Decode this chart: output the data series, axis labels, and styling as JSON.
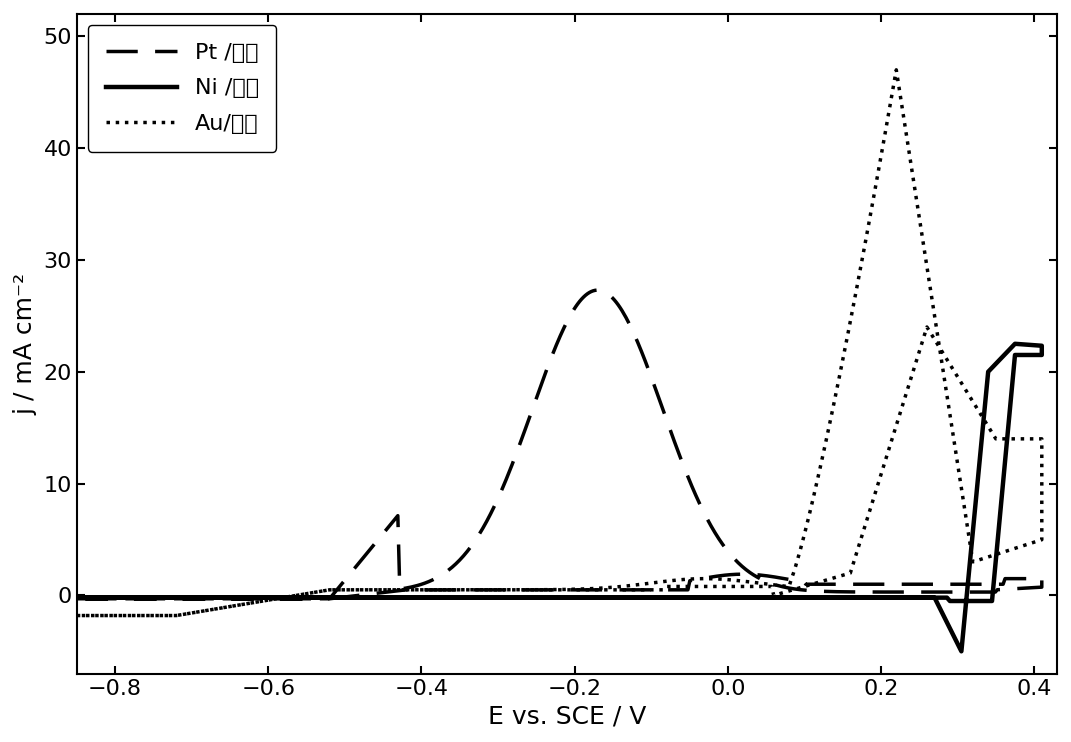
{
  "title": "",
  "xlabel": "E vs. SCE / V",
  "ylabel": "j / mA cm⁻²",
  "xlim": [
    -0.85,
    0.43
  ],
  "ylim": [
    -7,
    52
  ],
  "xticks": [
    -0.8,
    -0.6,
    -0.4,
    -0.2,
    0.0,
    0.2,
    0.4
  ],
  "yticks": [
    0,
    10,
    20,
    30,
    40,
    50
  ],
  "ytick_labels": [
    "0",
    "10",
    "20",
    "30",
    "40",
    "50"
  ],
  "legend_labels": [
    "Pt /炊黒",
    "Ni /炊黒",
    "Au/炊黒"
  ],
  "background_color": "#ffffff",
  "line_color": "#000000",
  "figsize": [
    10.71,
    7.42
  ],
  "dpi": 100
}
